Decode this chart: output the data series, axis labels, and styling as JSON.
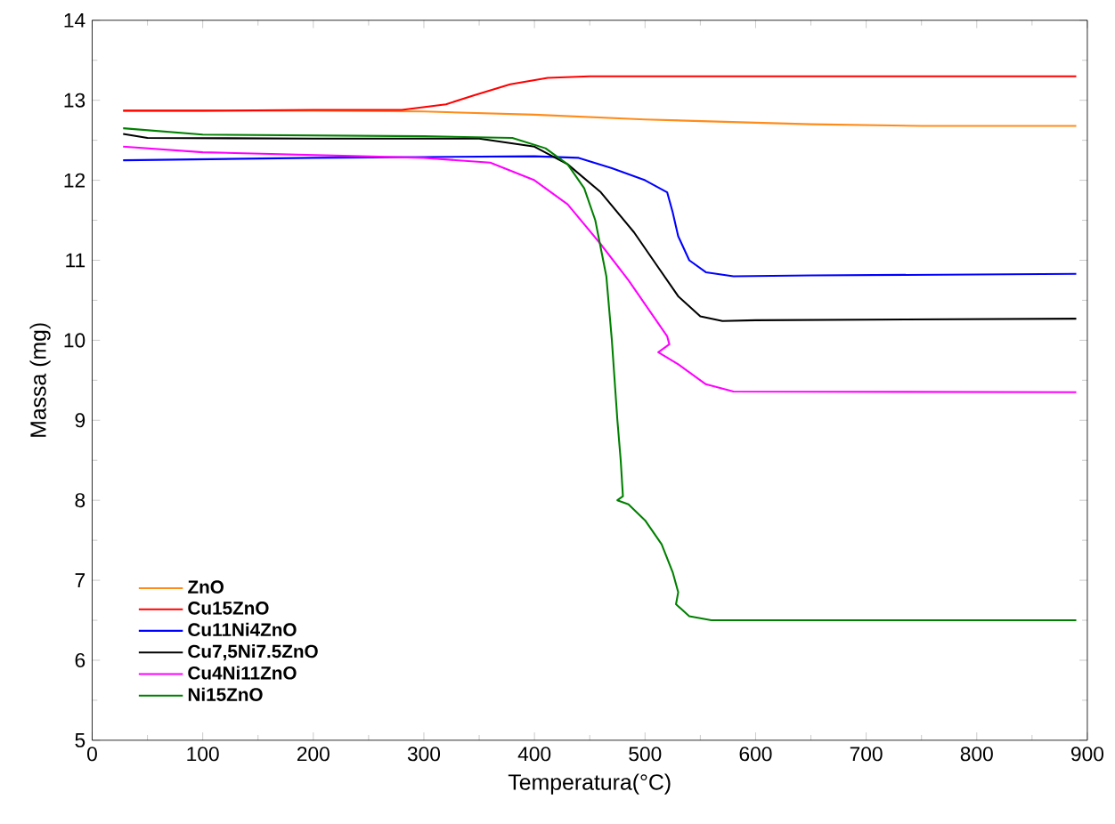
{
  "chart_data": {
    "type": "line",
    "xlabel": "Temperatura(°C)",
    "ylabel": "Massa (mg)",
    "xlim": [
      0,
      900
    ],
    "ylim": [
      5,
      14
    ],
    "xticks": [
      0,
      100,
      200,
      300,
      400,
      500,
      600,
      700,
      800,
      900
    ],
    "yticks": [
      5,
      6,
      7,
      8,
      9,
      10,
      11,
      12,
      13,
      14
    ],
    "grid": false,
    "legend": "bottom left",
    "marker": "none",
    "line_style": "solid",
    "series": [
      {
        "name": "ZnO",
        "color": "#ff8c1a",
        "x": [
          28,
          100,
          200,
          300,
          400,
          500,
          600,
          650,
          750,
          890
        ],
        "values": [
          12.87,
          12.87,
          12.87,
          12.86,
          12.82,
          12.76,
          12.72,
          12.7,
          12.68,
          12.68
        ]
      },
      {
        "name": "Cu15ZnO",
        "color": "#ff0000",
        "x": [
          28,
          100,
          200,
          280,
          320,
          345,
          378,
          412,
          450,
          500,
          600,
          890
        ],
        "values": [
          12.87,
          12.87,
          12.88,
          12.88,
          12.95,
          13.06,
          13.2,
          13.28,
          13.3,
          13.3,
          13.3,
          13.3
        ]
      },
      {
        "name": "Cu11Ni4ZnO",
        "color": "#0000ff",
        "x": [
          28,
          200,
          400,
          440,
          470,
          500,
          520,
          525,
          530,
          540,
          555,
          580,
          650,
          890
        ],
        "values": [
          12.25,
          12.28,
          12.3,
          12.28,
          12.15,
          12.0,
          11.85,
          11.6,
          11.3,
          11.0,
          10.85,
          10.8,
          10.81,
          10.83
        ]
      },
      {
        "name": "Cu7,5Ni7.5ZnO",
        "color": "#000000",
        "x": [
          28,
          50,
          200,
          350,
          400,
          430,
          460,
          490,
          510,
          530,
          550,
          570,
          600,
          890
        ],
        "values": [
          12.58,
          12.53,
          12.52,
          12.52,
          12.42,
          12.2,
          11.85,
          11.35,
          10.95,
          10.55,
          10.3,
          10.24,
          10.25,
          10.27
        ]
      },
      {
        "name": "Cu4Ni11ZnO",
        "color": "#ff00ff",
        "x": [
          28,
          100,
          300,
          360,
          400,
          430,
          460,
          485,
          505,
          520,
          522,
          512,
          530,
          555,
          580,
          890
        ],
        "values": [
          12.42,
          12.35,
          12.28,
          12.22,
          12.0,
          11.7,
          11.2,
          10.75,
          10.35,
          10.05,
          9.95,
          9.85,
          9.7,
          9.45,
          9.36,
          9.35
        ]
      },
      {
        "name": "Ni15ZnO",
        "color": "#008000",
        "x": [
          28,
          100,
          300,
          380,
          410,
          430,
          445,
          455,
          465,
          470,
          475,
          478,
          480,
          475,
          485,
          500,
          515,
          525,
          530,
          528,
          540,
          560,
          890
        ],
        "values": [
          12.65,
          12.57,
          12.55,
          12.53,
          12.4,
          12.2,
          11.9,
          11.5,
          10.8,
          10.0,
          9.0,
          8.5,
          8.05,
          8.0,
          7.95,
          7.75,
          7.45,
          7.1,
          6.85,
          6.7,
          6.55,
          6.5,
          6.5
        ]
      }
    ]
  }
}
